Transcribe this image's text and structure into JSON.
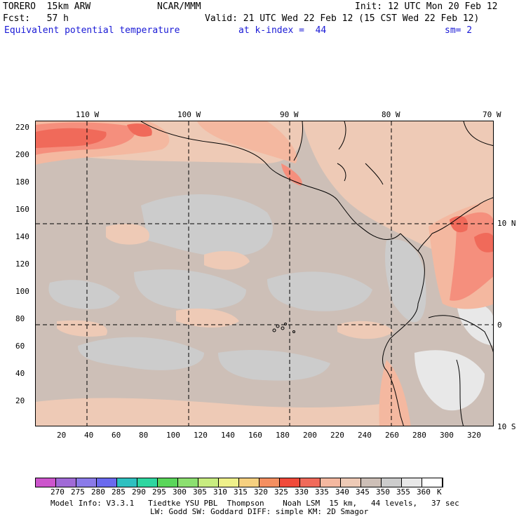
{
  "header": {
    "model": "TORERO  15km ARW",
    "org": "NCAR/MMM",
    "init": "Init: 12 UTC Mon 20 Feb 12",
    "fcst": "Fcst:   57 h",
    "valid": "Valid: 21 UTC Wed 22 Feb 12 (15 CST Wed 22 Feb 12)",
    "field": "Equivalent potential temperature",
    "level": "at k-index =  44",
    "smooth": "sm= 2"
  },
  "map": {
    "lon_labels": [
      "110 W",
      "100 W",
      "90 W",
      "80 W",
      "70 W"
    ],
    "lat_labels": [
      "10 N",
      "0",
      "10 S"
    ],
    "y_ticks": [
      "220",
      "200",
      "180",
      "160",
      "140",
      "120",
      "100",
      "80",
      "60",
      "40",
      "20"
    ],
    "x_ticks": [
      "20",
      "40",
      "60",
      "80",
      "100",
      "120",
      "140",
      "160",
      "180",
      "200",
      "220",
      "240",
      "260",
      "280",
      "300",
      "320"
    ],
    "fill_colors": {
      "c330": "#f06a5a",
      "c335": "#f58f7d",
      "c340": "#f4b8a0",
      "c345": "#eecab6",
      "c350": "#cdbfb7",
      "c355": "#cccccc",
      "c360": "#e8e8e8"
    }
  },
  "colorbar": {
    "labels": [
      "270",
      "275",
      "280",
      "285",
      "290",
      "295",
      "300",
      "305",
      "310",
      "315",
      "320",
      "325",
      "330",
      "335",
      "340",
      "345",
      "350",
      "355",
      "360",
      "K"
    ],
    "colors": [
      "#cc55cc",
      "#a06ad6",
      "#8a7ae8",
      "#6a6aee",
      "#2ec0c0",
      "#2ed6a0",
      "#5ad65a",
      "#8ce070",
      "#c8ec80",
      "#eef08a",
      "#f6d080",
      "#f48f60",
      "#f04a3a",
      "#f06a5a",
      "#f4b8a0",
      "#eecab6",
      "#cdbfb7",
      "#cccccc",
      "#e8e8e8",
      "#ffffff"
    ]
  },
  "footer": {
    "line1": "Model Info: V3.3.1   Tiedtke YSU PBL  Thompson    Noah LSM  15 km,   44 levels,   37 sec",
    "line2": "LW: Godd SW: Goddard DIFF: simple KM: 2D Smagor"
  }
}
